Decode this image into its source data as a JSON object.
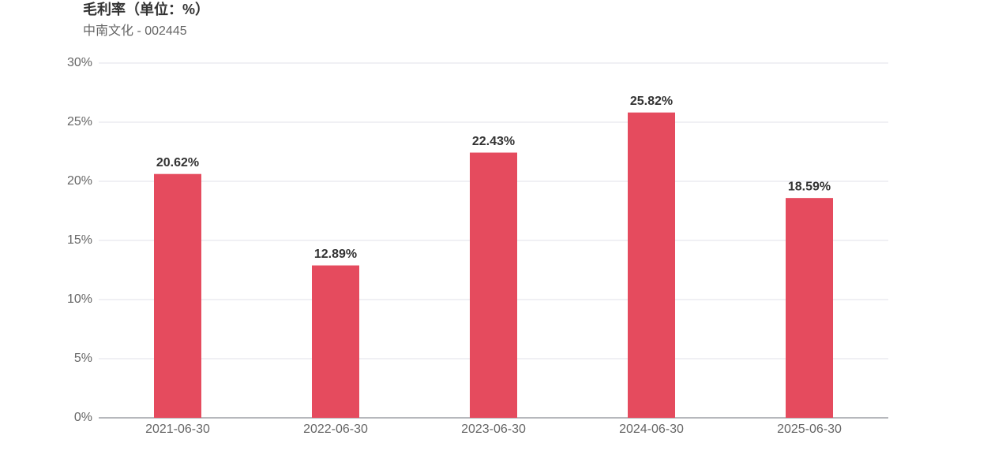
{
  "chart_data": {
    "type": "bar",
    "title": "毛利率（单位：%）",
    "subtitle": "中南文化 - 002445",
    "categories": [
      "2021-06-30",
      "2022-06-30",
      "2023-06-30",
      "2024-06-30",
      "2025-06-30"
    ],
    "values": [
      20.62,
      12.89,
      22.43,
      25.82,
      18.59
    ],
    "value_labels": [
      "20.62%",
      "12.89%",
      "22.43%",
      "25.82%",
      "18.59%"
    ],
    "color": "#e54b5e",
    "ylim": [
      0,
      30
    ],
    "yticks": [
      {
        "value": 0,
        "label": "0%"
      },
      {
        "value": 5,
        "label": "5%"
      },
      {
        "value": 10,
        "label": "10%"
      },
      {
        "value": 15,
        "label": "15%"
      },
      {
        "value": 20,
        "label": "20%"
      },
      {
        "value": 25,
        "label": "25%"
      },
      {
        "value": 30,
        "label": "30%"
      }
    ],
    "grid": true
  }
}
